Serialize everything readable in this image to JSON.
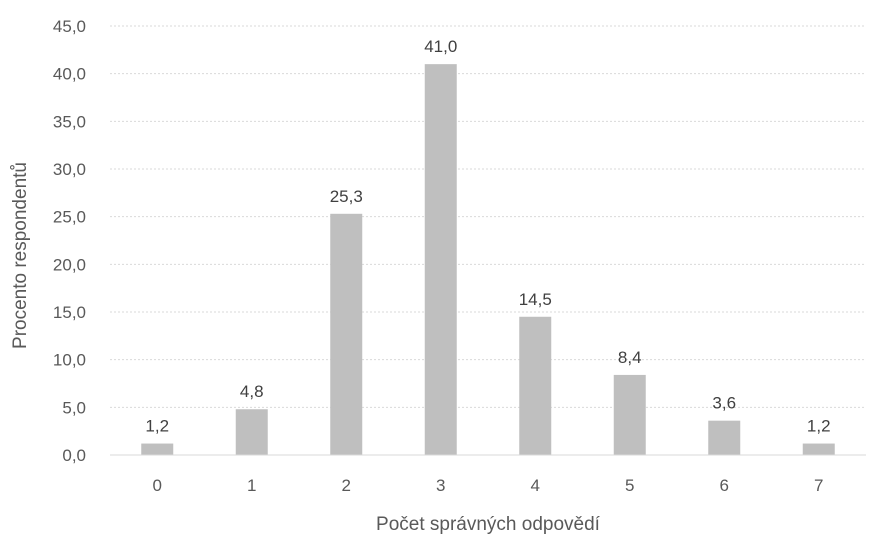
{
  "chart_data": {
    "type": "bar",
    "title": "",
    "xlabel": "Počet správných odpovědí",
    "ylabel": "Procento respondentů",
    "categories": [
      "0",
      "1",
      "2",
      "3",
      "4",
      "5",
      "6",
      "7"
    ],
    "values": [
      1.2,
      4.8,
      25.3,
      41.0,
      14.5,
      8.4,
      3.6,
      1.2
    ],
    "data_labels": [
      "1,2",
      "4,8",
      "25,3",
      "41,0",
      "14,5",
      "8,4",
      "3,6",
      "1,2"
    ],
    "ylim": [
      0,
      45
    ],
    "y_ticks": [
      "0,0",
      "5,0",
      "10,0",
      "15,0",
      "20,0",
      "25,0",
      "30,0",
      "35,0",
      "40,0",
      "45,0"
    ],
    "grid": true,
    "bar_color": "#bfbfbf",
    "grid_color": "#d9d9d9"
  }
}
